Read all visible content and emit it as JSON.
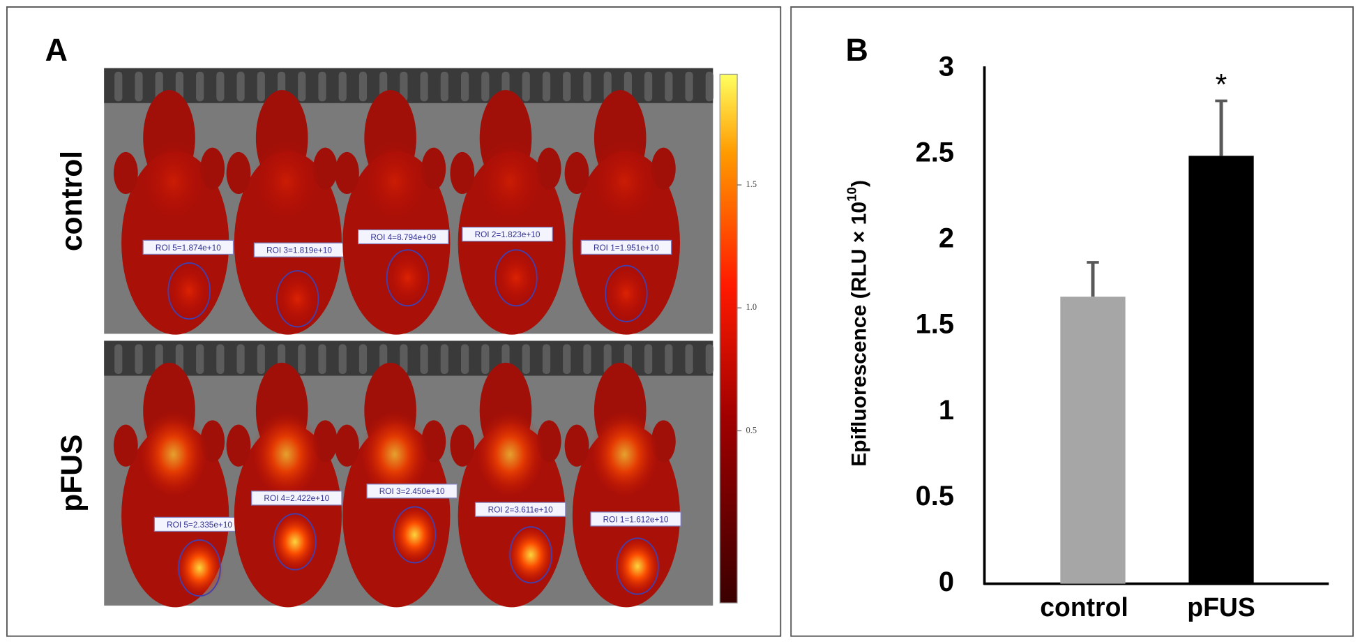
{
  "panel_a": {
    "label": "A",
    "rows": [
      {
        "label": "control",
        "rois": [
          "ROI 5=1.874e+10",
          "ROI 3=1.819e+10",
          "ROI 4=8.794e+09",
          "ROI 2=1.823e+10",
          "ROI 1=1.951e+10"
        ]
      },
      {
        "label": "pFUS",
        "rois": [
          "ROI 5=2.335e+10",
          "ROI 4=2.422e+10",
          "ROI 3=2.450e+10",
          "ROI 2=3.611e+10",
          "ROI 1=1.612e+10"
        ]
      }
    ],
    "colorbar": {
      "clim": [
        -0.2,
        1.95
      ],
      "ticks": [
        1.5,
        {
          "value": 1,
          "label": "1.0"
        },
        0.5
      ]
    }
  },
  "chart_data": {
    "type": "bar",
    "panel_label": "B",
    "ylabel": "Epifluorescence (RLU × 10",
    "ylabel_sup": "10",
    "ylabel_end": ")",
    "categories": [
      "control",
      "pFUS"
    ],
    "values": [
      1.67,
      2.49
    ],
    "errors": [
      0.2,
      0.32
    ],
    "colors": [
      "#a6a6a6",
      "#000000"
    ],
    "annotations": [
      {
        "category": 1,
        "text": "*"
      }
    ],
    "ylim": [
      0,
      3
    ],
    "yticks": [
      0,
      0.5,
      1,
      1.5,
      2,
      2.5,
      3
    ]
  }
}
